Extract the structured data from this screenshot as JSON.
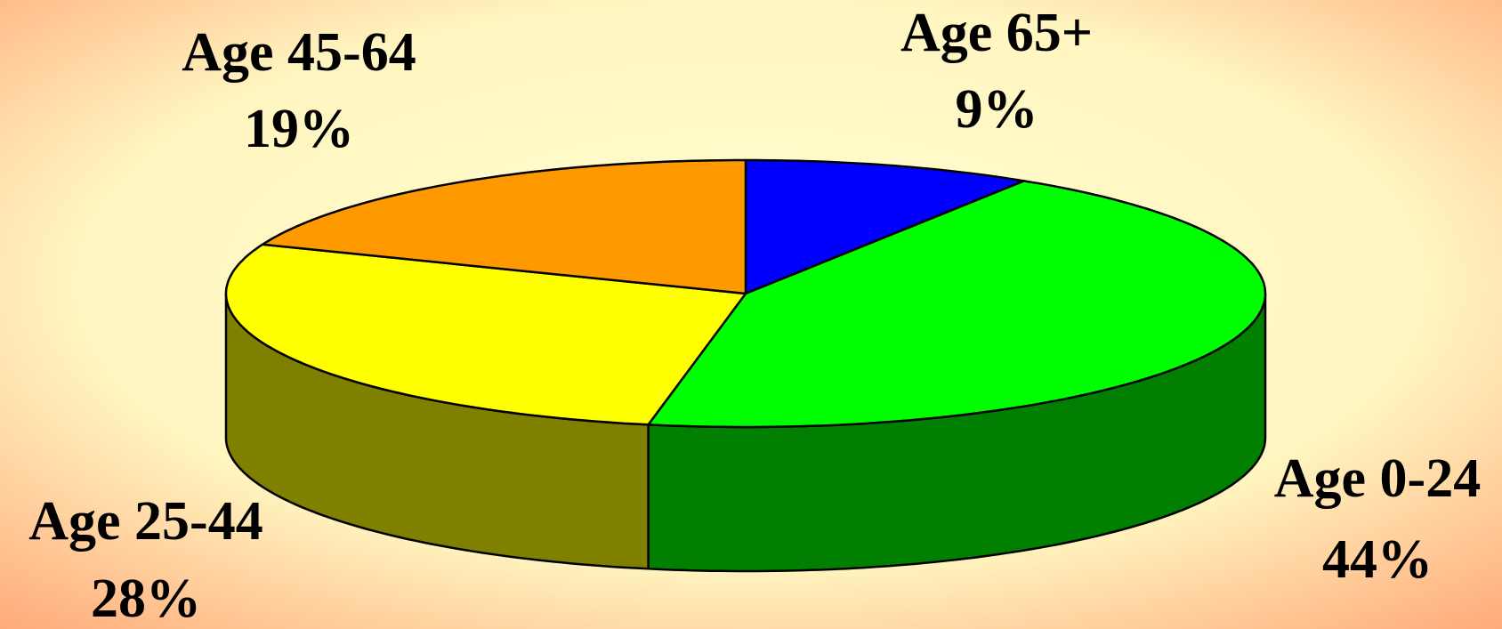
{
  "chart_data": {
    "type": "pie3d",
    "categories": [
      "Age 65+",
      "Age 0-24",
      "Age 25-44",
      "Age 45-64"
    ],
    "values": [
      9,
      44,
      28,
      19
    ],
    "value_labels": [
      "9%",
      "44%",
      "28%",
      "19%"
    ],
    "colors": [
      "#0000ff",
      "#00ff00",
      "#ffff00",
      "#ff9900"
    ]
  }
}
